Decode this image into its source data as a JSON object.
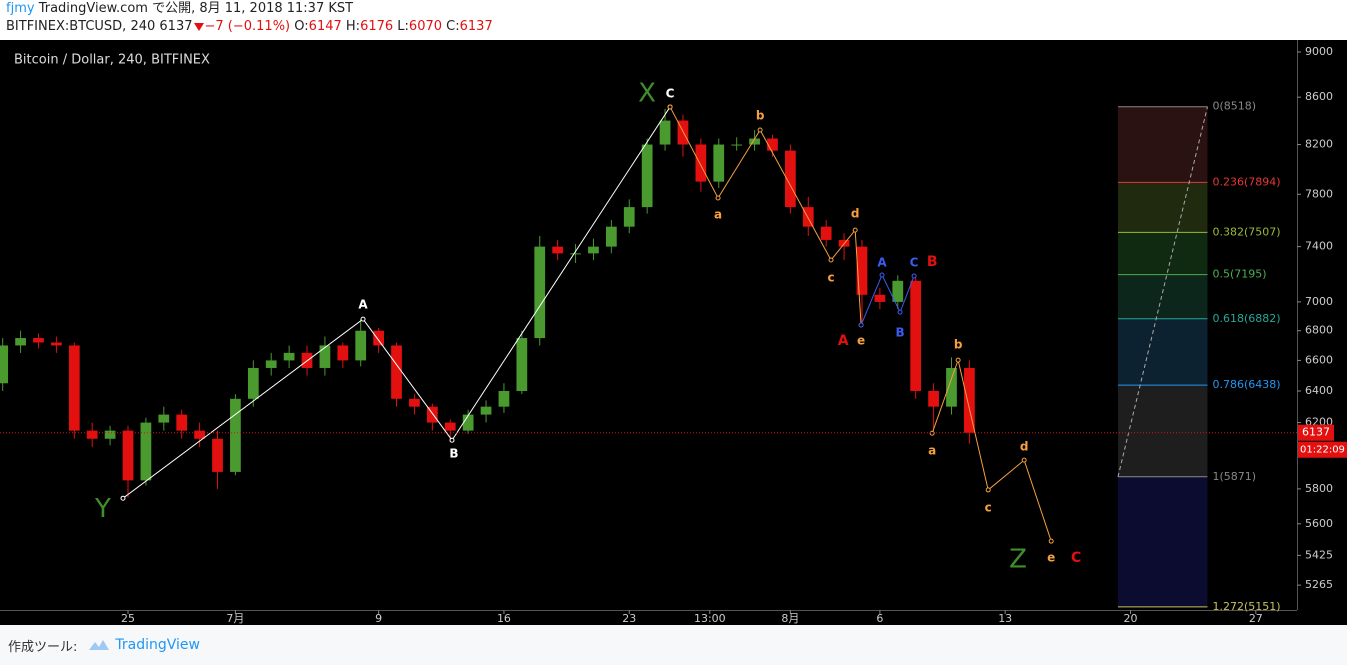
{
  "header": {
    "publisher": "fjmy",
    "published": "TradingView.com で公開, 8月 11, 2018 11:37 KST",
    "symbol": "BITFINEX:BTCUSD, 240",
    "last": "6137",
    "change": "−7 (−0.11%)",
    "ohlc": [
      {
        "label": "O:",
        "value": "6147"
      },
      {
        "label": "H:",
        "value": "6176"
      },
      {
        "label": "L:",
        "value": "6070"
      },
      {
        "label": "C:",
        "value": "6137"
      }
    ]
  },
  "chart_data": {
    "type": "candlestick",
    "title": "Bitcoin / Dollar, 240, BITFINEX",
    "log_scale": true,
    "grid": false,
    "up_color": "#4a9a30",
    "down_color": "#e31010",
    "xlim": [
      -7.15,
      65.3
    ],
    "ylim": [
      5135,
      9109
    ],
    "xticks": [
      {
        "value": 0,
        "label": "25"
      },
      {
        "value": 6,
        "label": "7月"
      },
      {
        "value": 14,
        "label": "9"
      },
      {
        "value": 21,
        "label": "16"
      },
      {
        "value": 28,
        "label": "23"
      },
      {
        "value": 32.5,
        "label": "13:00"
      },
      {
        "value": 37,
        "label": "8月"
      },
      {
        "value": 42,
        "label": "6"
      },
      {
        "value": 49,
        "label": "13"
      },
      {
        "value": 56,
        "label": "20"
      },
      {
        "value": 63,
        "label": "27"
      }
    ],
    "yticks": [
      9000,
      8600,
      8200,
      7800,
      7400,
      7000,
      6800,
      6600,
      6400,
      6200,
      5800,
      5600,
      5425,
      5265
    ],
    "x": [
      -7,
      -6,
      -5,
      -4,
      -3,
      -2,
      -1,
      0,
      1,
      2,
      3,
      4,
      5,
      6,
      7,
      8,
      9,
      10,
      11,
      12,
      13,
      14,
      15,
      16,
      17,
      18,
      19,
      20,
      21,
      22,
      23,
      24,
      25,
      26,
      27,
      28,
      29,
      30,
      31,
      32,
      33,
      34,
      35,
      36,
      37,
      38,
      39,
      40,
      41,
      42,
      43,
      44,
      45,
      46,
      47
    ],
    "open": [
      6450,
      6700,
      6750,
      6720,
      6700,
      6150,
      6100,
      6150,
      5850,
      6200,
      6250,
      6150,
      6100,
      5900,
      6350,
      6550,
      6600,
      6650,
      6550,
      6700,
      6600,
      6800,
      6700,
      6350,
      6300,
      6200,
      6150,
      6250,
      6300,
      6400,
      6750,
      7400,
      7350,
      7350,
      7400,
      7550,
      7700,
      8200,
      8400,
      8200,
      7900,
      8200,
      8200,
      8250,
      8150,
      7700,
      7550,
      7450,
      7400,
      7050,
      7000,
      7150,
      6400,
      6300,
      6550
    ],
    "high": [
      6750,
      6800,
      6780,
      6760,
      6720,
      6200,
      6180,
      6180,
      6230,
      6300,
      6280,
      6200,
      6150,
      6380,
      6600,
      6650,
      6700,
      6700,
      6760,
      6720,
      6880,
      6820,
      6720,
      6380,
      6320,
      6220,
      6280,
      6340,
      6450,
      6800,
      7480,
      7450,
      7420,
      7460,
      7600,
      7760,
      8250,
      8500,
      8450,
      8250,
      8250,
      8260,
      8320,
      8280,
      8200,
      7780,
      7600,
      7500,
      7450,
      7100,
      7190,
      7180,
      6450,
      6620,
      6600
    ],
    "low": [
      6400,
      6650,
      6680,
      6650,
      6100,
      6050,
      6060,
      5750,
      5820,
      6150,
      6100,
      6050,
      5800,
      5880,
      6300,
      6500,
      6550,
      6500,
      6500,
      6550,
      6560,
      6650,
      6300,
      6250,
      6150,
      6080,
      6130,
      6200,
      6260,
      6380,
      6700,
      7300,
      7280,
      7300,
      7350,
      7500,
      7650,
      8150,
      8100,
      7820,
      7850,
      8150,
      8150,
      8100,
      7650,
      7480,
      7400,
      7300,
      6850,
      6950,
      6950,
      6350,
      6150,
      6250,
      6070
    ],
    "close": [
      6700,
      6750,
      6720,
      6700,
      6150,
      6100,
      6150,
      5850,
      6200,
      6250,
      6150,
      6100,
      5900,
      6350,
      6550,
      6600,
      6650,
      6550,
      6700,
      6600,
      6800,
      6700,
      6350,
      6300,
      6200,
      6150,
      6250,
      6300,
      6400,
      6750,
      7400,
      7350,
      7350,
      7400,
      7550,
      7700,
      8200,
      8400,
      8200,
      7900,
      8200,
      8200,
      8250,
      8150,
      7700,
      7550,
      7450,
      7400,
      7050,
      7000,
      7150,
      6400,
      6300,
      6550,
      6137
    ],
    "last_price": 6137,
    "last_color": "#e31010",
    "countdown": "01:22:09",
    "waves": [
      {
        "color": "#ffffff",
        "x": [
          -0.28,
          13.13,
          18.1,
          30.28
        ],
        "y": [
          5746,
          6880,
          6091,
          8516
        ]
      },
      {
        "color": "#f5a040",
        "x": [
          30.28,
          32.96,
          35.31,
          39.27,
          40.62,
          40.95
        ],
        "y": [
          8516,
          7771,
          8321,
          7301,
          7524,
          6839
        ]
      },
      {
        "color": "#3a5cf0",
        "x": [
          40.95,
          42.12,
          43.13,
          43.91
        ],
        "y": [
          6839,
          7192,
          6928,
          7185
        ]
      },
      {
        "color": "#f5a040",
        "x": [
          44.92,
          46.37,
          48.05,
          50.06,
          51.57
        ],
        "y": [
          6134,
          6602,
          5794,
          5970,
          5503
        ]
      }
    ],
    "degree_labels": [
      {
        "text": "X",
        "color": "#3f8f2a",
        "x": 28.99,
        "y": 8628
      },
      {
        "text": "Y",
        "color": "#3f8f2a",
        "x": -1.4,
        "y": 5680
      },
      {
        "text": "Z",
        "color": "#3f8f2a",
        "x": 49.72,
        "y": 5400
      }
    ],
    "wave_labels": [
      {
        "text": "A",
        "color": "#ffffff",
        "x": 13.13,
        "y": 6977
      },
      {
        "text": "B",
        "color": "#ffffff",
        "x": 18.21,
        "y": 6007
      },
      {
        "text": "C",
        "color": "#ffffff",
        "x": 30.28,
        "y": 8627
      },
      {
        "text": "a",
        "color": "#f5a040",
        "x": 32.96,
        "y": 7638
      },
      {
        "text": "b",
        "color": "#f5a040",
        "x": 35.31,
        "y": 8439
      },
      {
        "text": "c",
        "color": "#f5a040",
        "x": 39.27,
        "y": 7170
      },
      {
        "text": "d",
        "color": "#f5a040",
        "x": 40.62,
        "y": 7646
      },
      {
        "text": "e",
        "color": "#f5a040",
        "x": 40.95,
        "y": 6729
      },
      {
        "text": "A",
        "color": "#e31010",
        "x": 39.95,
        "y": 6729
      },
      {
        "text": "A",
        "color": "#3a5cf0",
        "x": 42.12,
        "y": 7278
      },
      {
        "text": "B",
        "color": "#3a5cf0",
        "x": 43.13,
        "y": 6783
      },
      {
        "text": "C",
        "color": "#3a5cf0",
        "x": 43.91,
        "y": 7278
      },
      {
        "text": "B",
        "color": "#e31010",
        "x": 44.92,
        "y": 7285
      },
      {
        "text": "a",
        "color": "#f5a040",
        "x": 44.92,
        "y": 6025
      },
      {
        "text": "b",
        "color": "#f5a040",
        "x": 46.37,
        "y": 6702
      },
      {
        "text": "c",
        "color": "#f5a040",
        "x": 48.05,
        "y": 5689
      },
      {
        "text": "d",
        "color": "#f5a040",
        "x": 50.06,
        "y": 6049
      },
      {
        "text": "e",
        "color": "#f5a040",
        "x": 51.57,
        "y": 5410
      },
      {
        "text": "C",
        "color": "#e31010",
        "x": 52.96,
        "y": 5410
      }
    ],
    "fib": {
      "x": [
        55.3,
        60.3
      ],
      "levels": [
        {
          "value": 8518,
          "label": "0(8518)",
          "color": "#888888",
          "fill": "#2a1212"
        },
        {
          "value": 7894,
          "label": "0.236(7894)",
          "color": "#e53935",
          "fill": "#1f2a0e"
        },
        {
          "value": 7507,
          "label": "0.382(7507)",
          "color": "#9aba36",
          "fill": "#0f2a10"
        },
        {
          "value": 7195,
          "label": "0.5(7195)",
          "color": "#4caf50",
          "fill": "#0c261c"
        },
        {
          "value": 6882,
          "label": "0.618(6882)",
          "color": "#26a69a",
          "fill": "#0c2230"
        },
        {
          "value": 6438,
          "label": "0.786(6438)",
          "color": "#2196f3",
          "fill": "#1e1e1e"
        },
        {
          "value": 5871,
          "label": "1(5871)",
          "color": "#888888",
          "fill": "#0c0c30"
        },
        {
          "value": 5151,
          "label": "1.272(5151)",
          "color": "#c8c060",
          "fill": null
        }
      ]
    }
  },
  "footer": {
    "made_with": "作成ツール:",
    "brand": "TradingView"
  }
}
